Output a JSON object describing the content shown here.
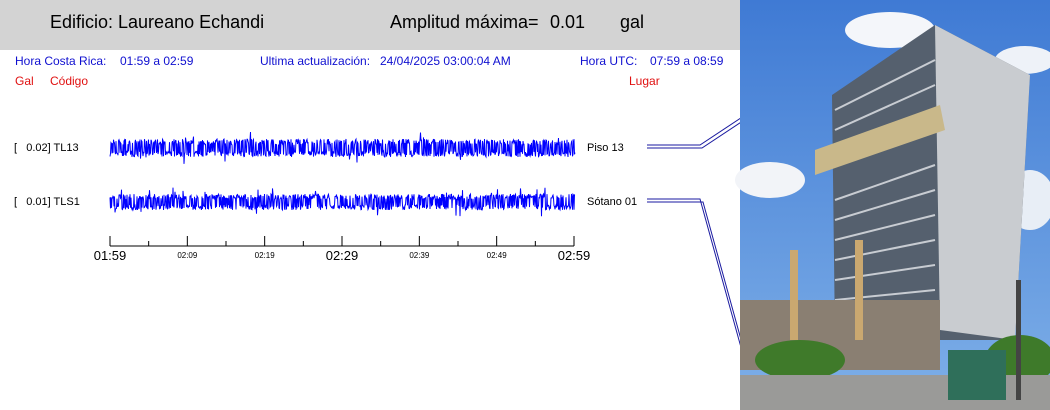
{
  "header": {
    "building": "Edificio: Laureano Echandi",
    "amp_label": "Amplitud máxima=",
    "amp_value": "0.01",
    "amp_unit": "gal"
  },
  "info": {
    "local_label": "Hora Costa Rica:",
    "local_range": "01:59 a 02:59",
    "update_label": "Ultima actualización:",
    "update_value": "24/04/2025 03:00:04 AM",
    "utc_label": "Hora UTC:",
    "utc_range": "07:59 a 08:59"
  },
  "columns": {
    "gal": "Gal",
    "code": "Código",
    "place": "Lugar"
  },
  "traces": [
    {
      "amp": "[   0.02] TL13",
      "place": "Piso 13"
    },
    {
      "amp": "[   0.01] TLS1",
      "place": "Sótano 01"
    }
  ],
  "axis_ticks": [
    "01:59",
    "02:09",
    "02:19",
    "02:29",
    "02:39",
    "02:49",
    "02:59"
  ],
  "colors": {
    "trace": "#0000ff",
    "header_bg": "#d3d3d3",
    "info_text": "#1010d0",
    "column_text": "#e01010"
  }
}
